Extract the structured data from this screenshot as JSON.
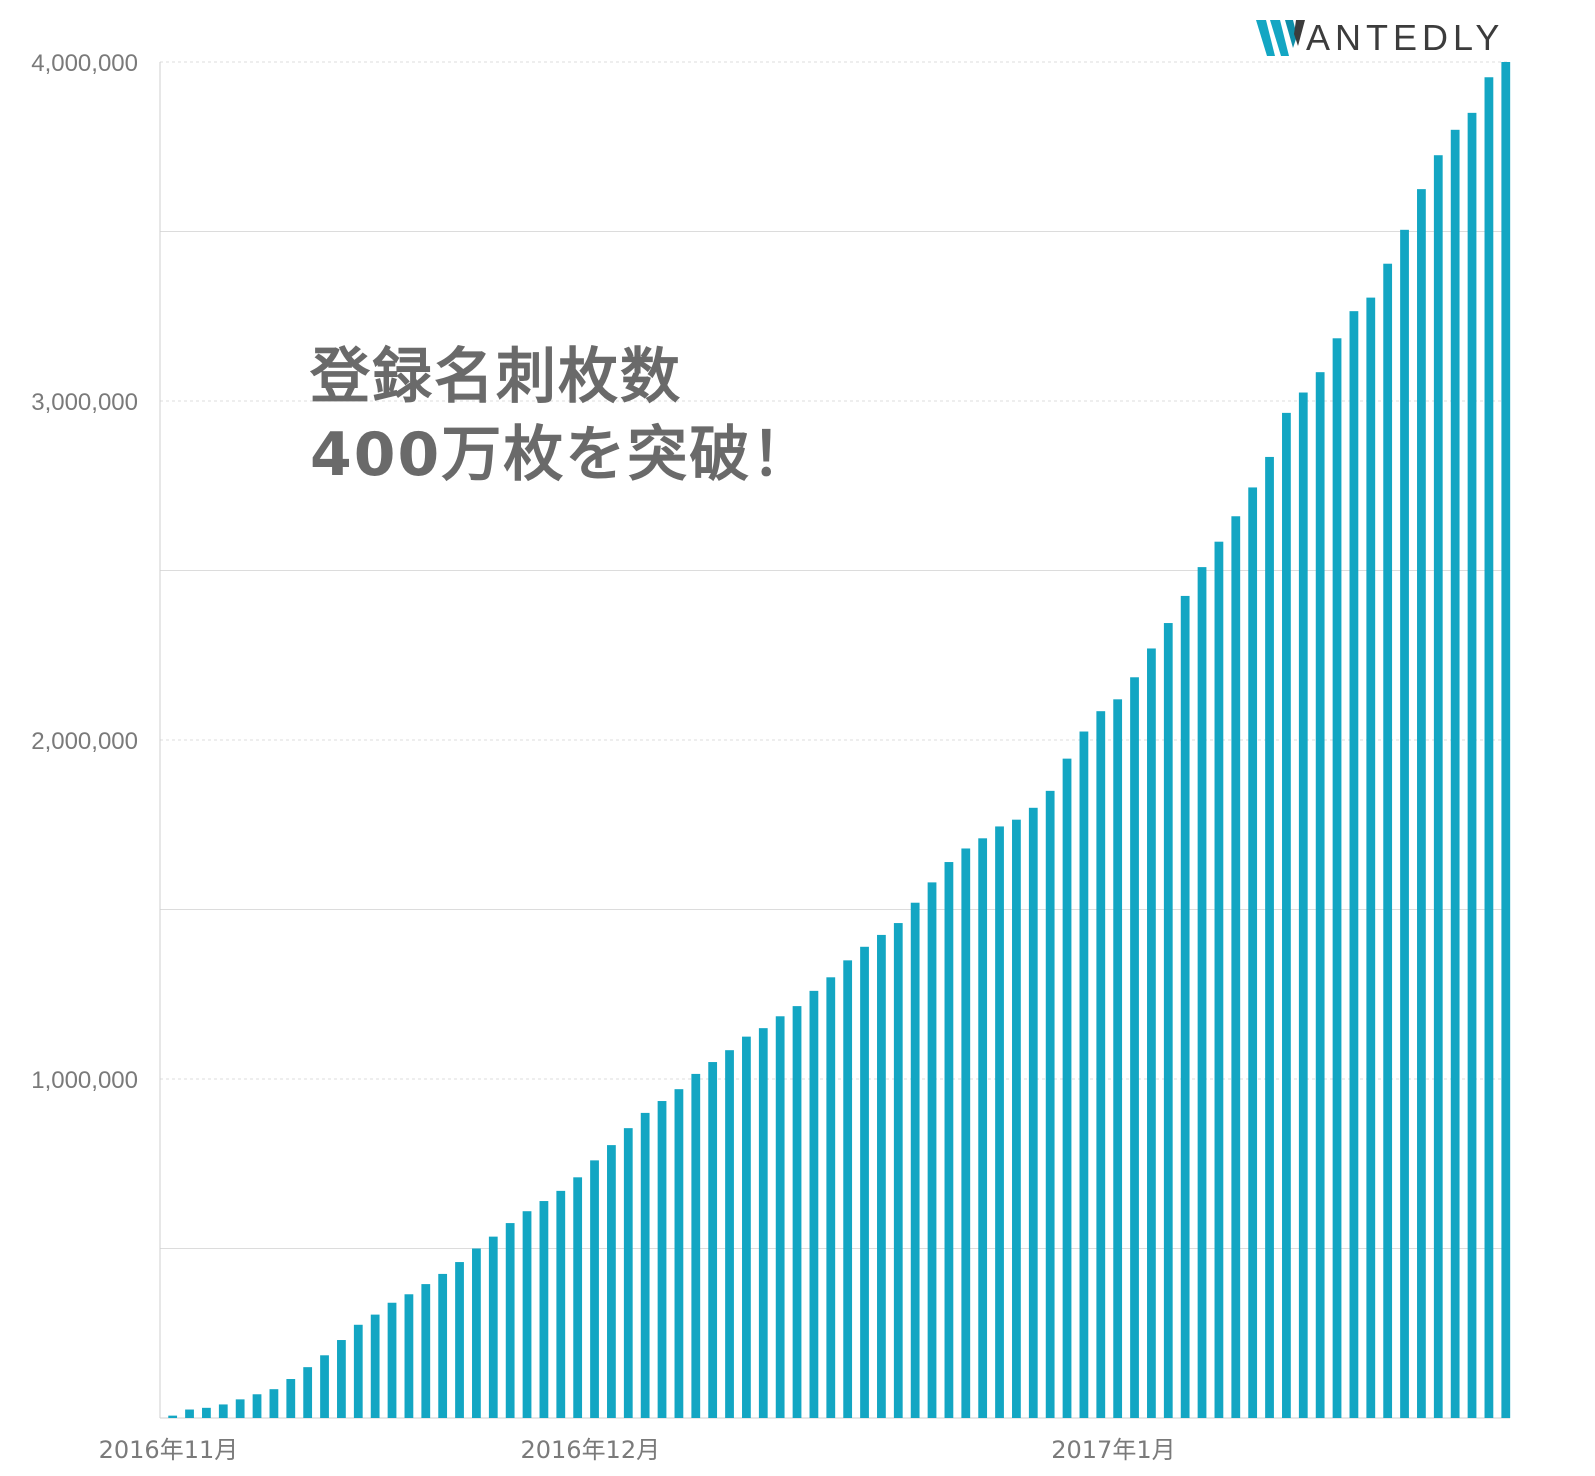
{
  "brand": {
    "name": "ANTEDLY",
    "mark": "W",
    "mark_color": "#13a6c3",
    "icon": "wantedly-w-icon"
  },
  "headline": {
    "line1": "登録名刺枚数",
    "line2": "400万枚を突破！"
  },
  "chart_data": {
    "type": "bar",
    "title": "",
    "xlabel": "",
    "ylabel": "",
    "ylim": [
      0,
      4000000
    ],
    "y_ticks": [
      {
        "value": 1000000,
        "label": "1,000,000"
      },
      {
        "value": 2000000,
        "label": "2,000,000"
      },
      {
        "value": 3000000,
        "label": "3,000,000"
      },
      {
        "value": 4000000,
        "label": "4,000,000"
      }
    ],
    "x_ticks": [
      {
        "index": 0,
        "label": "2016年11月"
      },
      {
        "index": 25,
        "label": "2016年12月"
      },
      {
        "index": 56,
        "label": "2017年1月"
      }
    ],
    "grid": true,
    "legend": "none",
    "bar_color": "#13a6c3",
    "values": [
      7000,
      25000,
      30000,
      40000,
      55000,
      70000,
      85000,
      115000,
      150000,
      185000,
      230000,
      275000,
      305000,
      340000,
      365000,
      395000,
      425000,
      460000,
      500000,
      535000,
      575000,
      610000,
      640000,
      670000,
      710000,
      760000,
      805000,
      855000,
      900000,
      935000,
      970000,
      1015000,
      1050000,
      1085000,
      1125000,
      1150000,
      1185000,
      1215000,
      1260000,
      1300000,
      1350000,
      1390000,
      1425000,
      1460000,
      1520000,
      1580000,
      1640000,
      1680000,
      1710000,
      1745000,
      1765000,
      1800000,
      1850000,
      1945000,
      2025000,
      2085000,
      2120000,
      2185000,
      2270000,
      2345000,
      2425000,
      2510000,
      2585000,
      2660000,
      2745000,
      2835000,
      2965000,
      3025000,
      3085000,
      3185000,
      3265000,
      3305000,
      3405000,
      3505000,
      3625000,
      3725000,
      3800000,
      3850000,
      3955000,
      4000000
    ]
  }
}
